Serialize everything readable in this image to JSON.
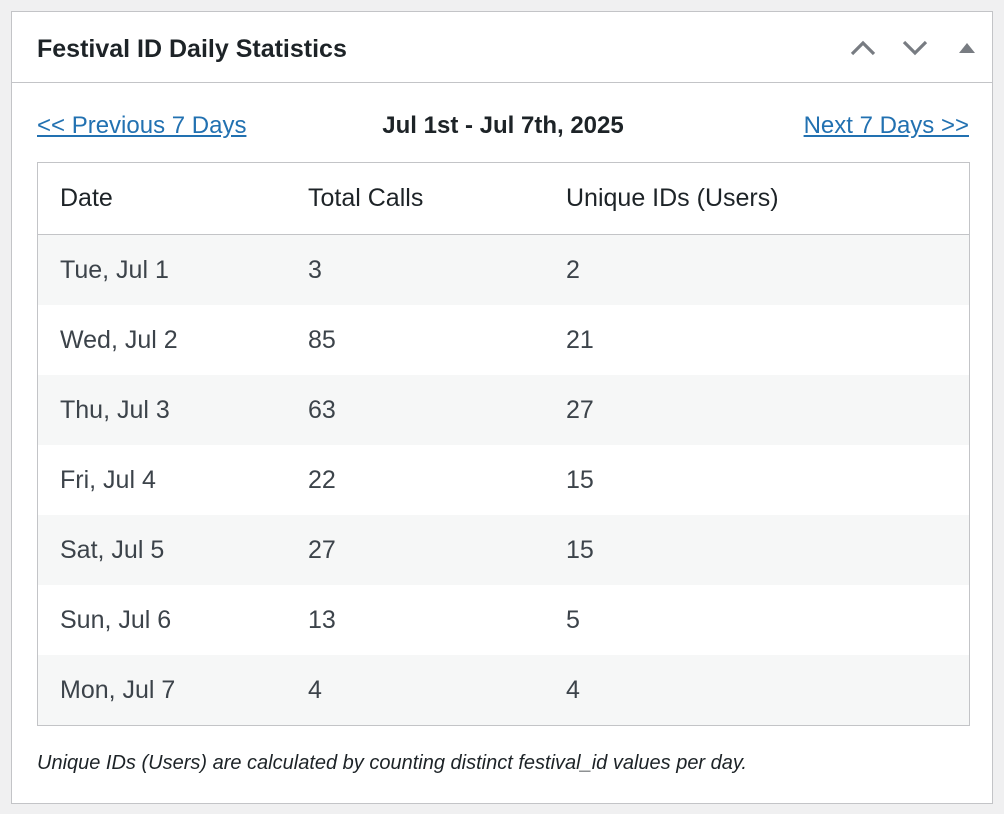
{
  "panel": {
    "title": "Festival ID Daily Statistics",
    "icons": {
      "move_up": "chevron-up-icon",
      "move_down": "chevron-down-icon",
      "toggle": "triangle-up-icon"
    }
  },
  "nav": {
    "prev_label": "<< Previous 7 Days",
    "range_label": "Jul 1st - Jul 7th, 2025",
    "next_label": "Next 7 Days >>"
  },
  "table": {
    "headers": [
      "Date",
      "Total Calls",
      "Unique IDs (Users)"
    ],
    "rows": [
      [
        "Tue, Jul 1",
        "3",
        "2"
      ],
      [
        "Wed, Jul 2",
        "85",
        "21"
      ],
      [
        "Thu, Jul 3",
        "63",
        "27"
      ],
      [
        "Fri, Jul 4",
        "22",
        "15"
      ],
      [
        "Sat, Jul 5",
        "27",
        "15"
      ],
      [
        "Sun, Jul 6",
        "13",
        "5"
      ],
      [
        "Mon, Jul 7",
        "4",
        "4"
      ]
    ]
  },
  "footnote": "Unique IDs (Users) are calculated by counting distinct festival_id values per day.",
  "colors": {
    "link": "#2271b1",
    "border": "#c3c4c7",
    "stripe": "#f6f7f7",
    "icon": "#787c82"
  }
}
